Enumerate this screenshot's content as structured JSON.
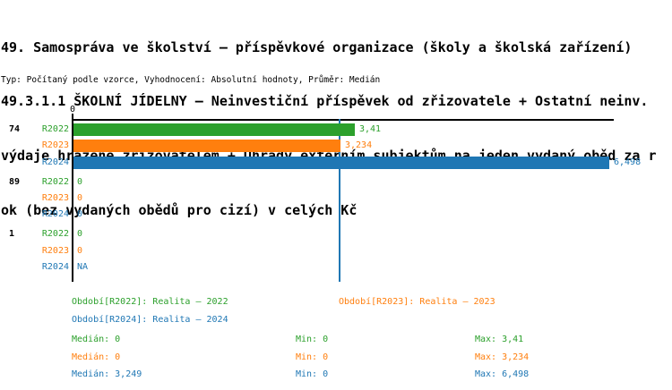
{
  "title_lines": [
    "49. Samospráva ve školství – příspěvkové organizace (školy a školská zařízení)",
    "49.3.1.1 ŠKOLNÍ JÍDELNY – Neinvestiční příspěvek od zřizovatele + Ostatní neinv.",
    "výdaje hrazené zřizovatelem + Úhrady externím subjektům na jeden vydaný oběd za r",
    "ok (bez vydaných obědů pro cizí) v celých Kč"
  ],
  "subtitle": "Typ: Počítaný podle vzorce, Vyhodnocení: Absolutní hodnoty, Průměr: Medián",
  "colors": {
    "r2022": "#2ca02c",
    "r2023": "#ff7f0e",
    "r2024": "#1f77b4",
    "axis": "#000000"
  },
  "chart_data": {
    "type": "bar",
    "orientation": "horizontal",
    "title": "49.3.1.1 ŠKOLNÍ JÍDELNY – Neinvestiční příspěvek od zřizovatele + Ostatní neinv. výdaje hrazené zřizovatelem + Úhrady externím subjektům na jeden vydaný oběd za rok (bez vydaných obědů pro cizí) v celých Kč",
    "axis": {
      "tick_label": "0",
      "xlim": [
        0,
        6.57
      ]
    },
    "median_line": {
      "value": 3.249,
      "series": "R2024"
    },
    "series_names": [
      "R2022",
      "R2023",
      "R2024"
    ],
    "groups": [
      {
        "label": "74",
        "bars": [
          {
            "series": "R2022",
            "value": 3.41,
            "label": "3,41"
          },
          {
            "series": "R2023",
            "value": 3.234,
            "label": "3,234"
          },
          {
            "series": "R2024",
            "value": 6.498,
            "label": "6,498"
          }
        ]
      },
      {
        "label": "89",
        "bars": [
          {
            "series": "R2022",
            "value": 0,
            "label": "0"
          },
          {
            "series": "R2023",
            "value": 0,
            "label": "0"
          },
          {
            "series": "R2024",
            "value": 0,
            "label": "0"
          }
        ]
      },
      {
        "label": "1",
        "bars": [
          {
            "series": "R2022",
            "value": 0,
            "label": "0"
          },
          {
            "series": "R2023",
            "value": 0,
            "label": "0"
          },
          {
            "series": "R2024",
            "value": null,
            "label": "NA"
          }
        ]
      }
    ],
    "summary": {
      "medians": [
        0,
        0,
        3.249
      ],
      "mins": [
        0,
        0,
        0
      ],
      "maxes": [
        3.41,
        3.234,
        6.498
      ]
    }
  },
  "legend": [
    {
      "series": "R2022",
      "text": "Období[R2022]: Realita – 2022"
    },
    {
      "series": "R2023",
      "text": "Období[R2023]: Realita – 2023"
    },
    {
      "series": "R2024",
      "text": "Období[R2024]: Realita – 2024"
    }
  ],
  "stats": [
    {
      "series": "R2022",
      "median": "Medián: 0",
      "min": "Min: 0",
      "max": "Max: 3,41"
    },
    {
      "series": "R2023",
      "median": "Medián: 0",
      "min": "Min: 0",
      "max": "Max: 3,234"
    },
    {
      "series": "R2024",
      "median": "Medián: 3,249",
      "min": "Min: 0",
      "max": "Max: 6,498"
    }
  ]
}
